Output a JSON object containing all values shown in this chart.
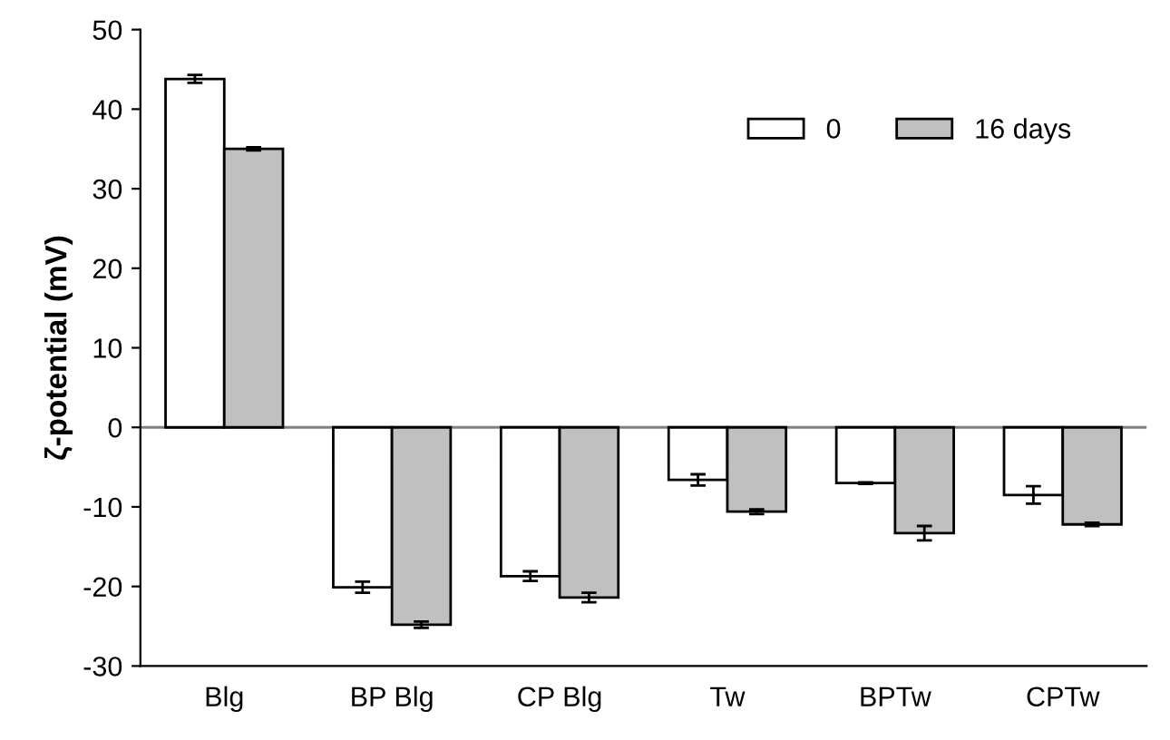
{
  "chart_data": {
    "type": "bar",
    "ylabel": "ζ-potential (mV)",
    "categories": [
      "Blg",
      "BP Blg",
      "CP Blg",
      "Tw",
      "BPTw",
      "CPTw"
    ],
    "series": [
      {
        "name": "0",
        "color": "#ffffff",
        "values": [
          43.8,
          -20.1,
          -18.7,
          -6.6,
          -7.0,
          -8.5
        ],
        "errors": [
          0.5,
          0.7,
          0.6,
          0.7,
          0.1,
          1.1
        ]
      },
      {
        "name": "16 days",
        "color": "#c0c0c0",
        "values": [
          35.0,
          -24.8,
          -21.4,
          -10.6,
          -13.3,
          -12.2
        ],
        "errors": [
          0.2,
          0.4,
          0.6,
          0.3,
          0.9,
          0.2
        ]
      }
    ],
    "ylim": [
      -30,
      50
    ],
    "yticks": [
      -30,
      -20,
      -10,
      0,
      10,
      20,
      30,
      40,
      50
    ],
    "ref_lines": [
      {
        "axis": "y",
        "value": 0,
        "color": "#808080"
      }
    ],
    "grid": false,
    "legend": "top right"
  }
}
